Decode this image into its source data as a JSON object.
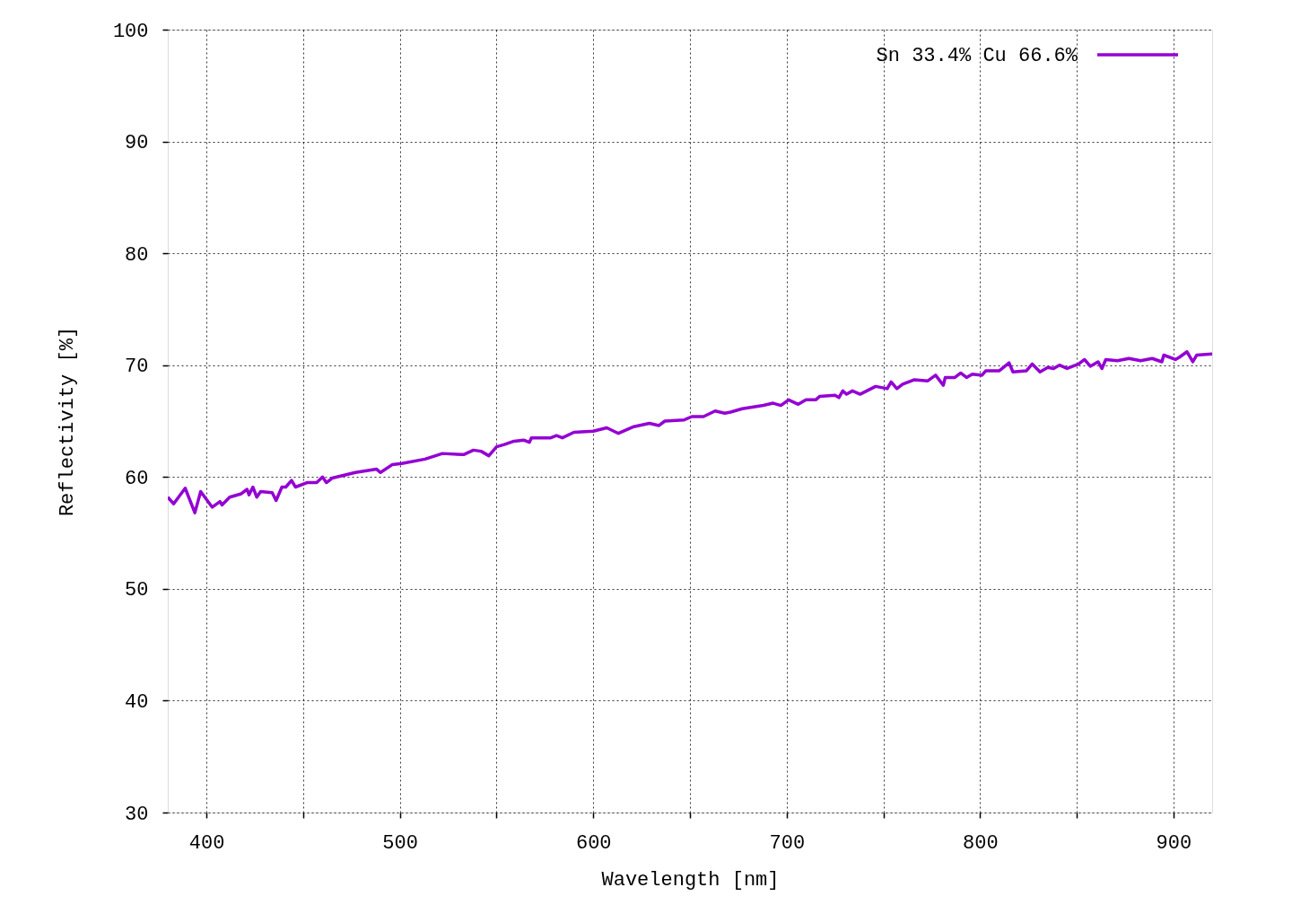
{
  "chart_data": {
    "type": "line",
    "xlabel": "Wavelength [nm]",
    "ylabel": "Reflectivity [%]",
    "xlim": [
      380,
      920
    ],
    "ylim": [
      30,
      100
    ],
    "xticks": [
      400,
      {
        "value": 450,
        "label": null
      },
      500,
      {
        "value": 550,
        "label": null
      },
      600,
      {
        "value": 650,
        "label": null
      },
      700,
      {
        "value": 750,
        "label": null
      },
      800,
      {
        "value": 850,
        "label": null
      },
      900
    ],
    "yticks": [
      30,
      40,
      50,
      60,
      70,
      80,
      90,
      100
    ],
    "grid": true,
    "legend": "top right",
    "line_style": "solid",
    "marker": "none",
    "series": [
      {
        "name": "Sn 33.4% Cu 66.6%",
        "color": "#9400d3",
        "x": [
          380,
          383,
          389,
          394,
          397,
          403,
          407,
          408,
          412,
          418,
          421,
          422,
          424,
          426,
          428,
          434,
          436,
          439,
          441,
          444,
          446,
          452,
          457,
          460,
          462,
          465,
          477,
          488,
          490,
          496,
          501,
          513,
          522,
          533,
          538,
          542,
          546,
          550,
          554,
          559,
          564,
          567,
          568,
          578,
          581,
          584,
          590,
          600,
          607,
          613,
          621,
          629,
          634,
          637,
          647,
          651,
          657,
          663,
          668,
          671,
          677,
          688,
          693,
          697,
          701,
          706,
          710,
          715,
          717,
          725,
          727,
          729,
          731,
          734,
          738,
          746,
          752,
          754,
          757,
          760,
          766,
          773,
          777,
          781,
          782,
          787,
          790,
          793,
          796,
          801,
          803,
          810,
          815,
          817,
          824,
          827,
          831,
          835,
          838,
          841,
          845,
          851,
          854,
          857,
          861,
          863,
          865,
          871,
          877,
          883,
          889,
          894,
          895,
          901,
          903,
          907,
          910,
          912,
          920
        ],
        "values": [
          58.2,
          57.6,
          59.0,
          56.8,
          58.7,
          57.3,
          57.8,
          57.5,
          58.2,
          58.5,
          58.9,
          58.4,
          59.1,
          58.2,
          58.7,
          58.6,
          57.9,
          59.1,
          59.1,
          59.7,
          59.1,
          59.5,
          59.5,
          60.0,
          59.5,
          59.9,
          60.4,
          60.7,
          60.4,
          61.1,
          61.2,
          61.6,
          62.1,
          62.0,
          62.4,
          62.3,
          61.9,
          62.7,
          62.9,
          63.2,
          63.3,
          63.1,
          63.5,
          63.5,
          63.7,
          63.5,
          64.0,
          64.1,
          64.4,
          63.9,
          64.5,
          64.8,
          64.6,
          65.0,
          65.1,
          65.4,
          65.4,
          65.9,
          65.7,
          65.8,
          66.1,
          66.4,
          66.6,
          66.4,
          66.9,
          66.5,
          66.9,
          66.9,
          67.2,
          67.3,
          67.1,
          67.7,
          67.4,
          67.7,
          67.4,
          68.1,
          67.9,
          68.5,
          67.9,
          68.3,
          68.7,
          68.6,
          69.1,
          68.2,
          68.9,
          68.9,
          69.3,
          68.9,
          69.2,
          69.1,
          69.5,
          69.5,
          70.2,
          69.4,
          69.5,
          70.1,
          69.4,
          69.8,
          69.7,
          70.0,
          69.7,
          70.1,
          70.5,
          69.9,
          70.3,
          69.7,
          70.5,
          70.4,
          70.6,
          70.4,
          70.6,
          70.3,
          70.9,
          70.5,
          70.7,
          71.2,
          70.3,
          70.9,
          71.0
        ]
      }
    ]
  }
}
